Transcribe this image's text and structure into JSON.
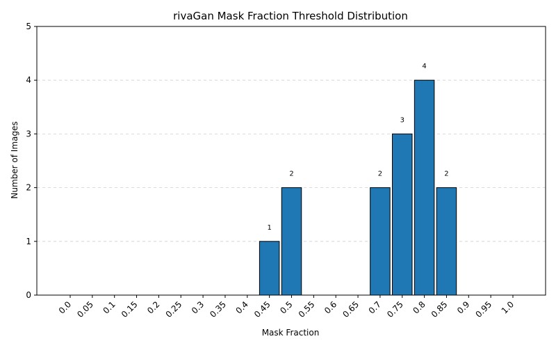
{
  "chart_data": {
    "type": "bar",
    "title": "rivaGan Mask Fraction Threshold Distribution",
    "xlabel": "Mask Fraction",
    "ylabel": "Number of Images",
    "categories": [
      "0.0",
      "0.05",
      "0.1",
      "0.15",
      "0.2",
      "0.25",
      "0.3",
      "0.35",
      "0.4",
      "0.45",
      "0.5",
      "0.55",
      "0.6",
      "0.65",
      "0.7",
      "0.75",
      "0.8",
      "0.85",
      "0.9",
      "0.95",
      "1.0"
    ],
    "values": [
      0,
      0,
      0,
      0,
      0,
      0,
      0,
      0,
      0,
      1,
      2,
      0,
      0,
      0,
      2,
      3,
      4,
      2,
      0,
      0,
      0
    ],
    "ylim": [
      0,
      5
    ],
    "yticks": [
      0,
      1,
      2,
      3,
      4,
      5
    ],
    "grid": "y-dashed",
    "legend": "none",
    "bar_color": "#1f77b4"
  }
}
